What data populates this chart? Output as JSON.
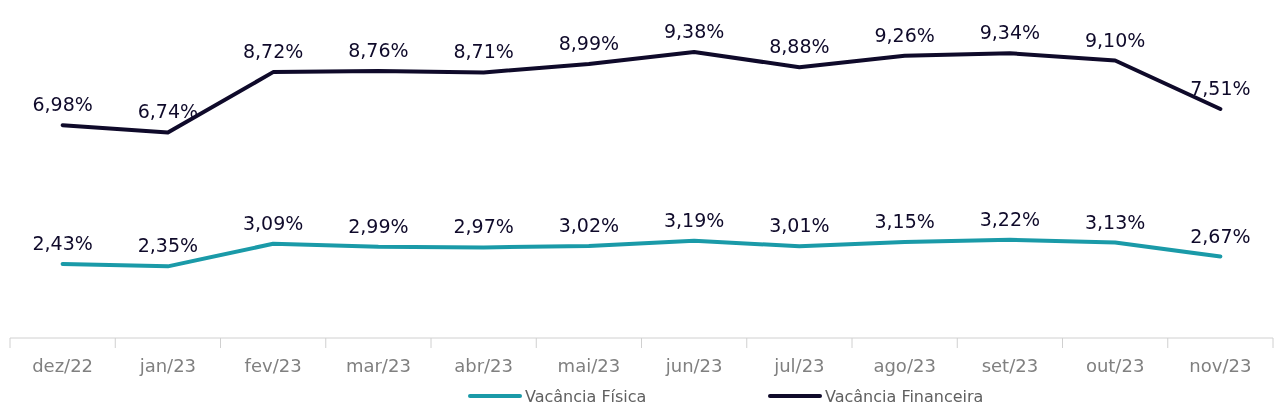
{
  "chart_data": {
    "type": "line",
    "categories": [
      "dez/22",
      "jan/23",
      "fev/23",
      "mar/23",
      "abr/23",
      "mai/23",
      "jun/23",
      "jul/23",
      "ago/23",
      "set/23",
      "out/23",
      "nov/23"
    ],
    "series": [
      {
        "name": "Vacância Física",
        "color": "#1a9aa8",
        "values": [
          2.43,
          2.35,
          3.09,
          2.99,
          2.97,
          3.02,
          3.19,
          3.01,
          3.15,
          3.22,
          3.13,
          2.67
        ],
        "value_labels": [
          "2,43%",
          "2,35%",
          "3,09%",
          "2,99%",
          "2,97%",
          "3,02%",
          "3,19%",
          "3,01%",
          "3,15%",
          "3,22%",
          "3,13%",
          "2,67%"
        ]
      },
      {
        "name": "Vacância Financeira",
        "color": "#0f0a2a",
        "values": [
          6.98,
          6.74,
          8.72,
          8.76,
          8.71,
          8.99,
          9.38,
          8.88,
          9.26,
          9.34,
          9.1,
          7.51
        ],
        "value_labels": [
          "6,98%",
          "6,74%",
          "8,72%",
          "8,76%",
          "8,71%",
          "8,99%",
          "9,38%",
          "8,88%",
          "9,26%",
          "9,34%",
          "9,10%",
          "7,51%"
        ]
      }
    ],
    "tick_labels": "x",
    "legend": "bottom",
    "marker": "none",
    "line_style": "solid"
  }
}
